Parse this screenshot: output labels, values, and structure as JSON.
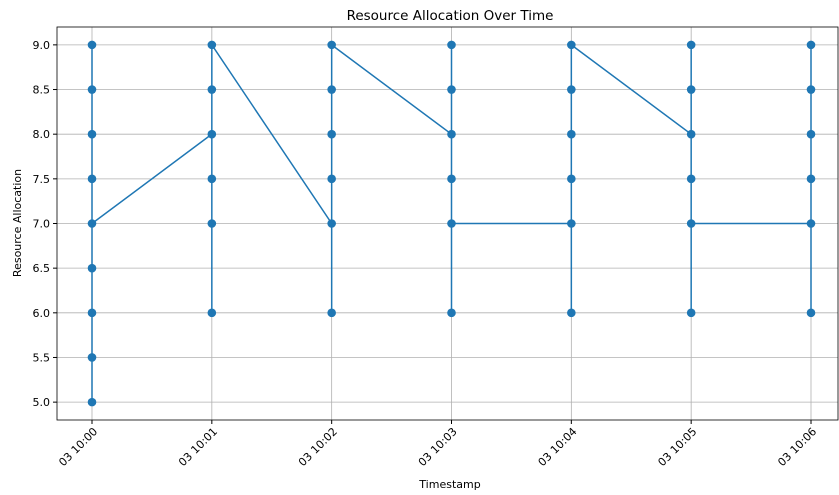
{
  "chart_data": {
    "type": "line",
    "title": "Resource Allocation Over Time",
    "xlabel": "Timestamp",
    "ylabel": "Resource Allocation",
    "xticks": [
      "03 10:00",
      "03 10:01",
      "03 10:02",
      "03 10:03",
      "03 10:04",
      "03 10:05",
      "03 10:06"
    ],
    "x": [
      "03 10:00",
      "03 10:00",
      "03 10:00",
      "03 10:00",
      "03 10:00",
      "03 10:00",
      "03 10:00",
      "03 10:00",
      "03 10:00",
      "03 10:01",
      "03 10:01",
      "03 10:01",
      "03 10:01",
      "03 10:01",
      "03 10:01",
      "03 10:02",
      "03 10:02",
      "03 10:02",
      "03 10:02",
      "03 10:02",
      "03 10:02",
      "03 10:03",
      "03 10:03",
      "03 10:03",
      "03 10:03",
      "03 10:03",
      "03 10:03",
      "03 10:04",
      "03 10:04",
      "03 10:04",
      "03 10:04",
      "03 10:04",
      "03 10:04",
      "03 10:05",
      "03 10:05",
      "03 10:05",
      "03 10:05",
      "03 10:05",
      "03 10:05",
      "03 10:06",
      "03 10:06",
      "03 10:06",
      "03 10:06",
      "03 10:06",
      "03 10:06"
    ],
    "series": [
      {
        "color": "#1f77b4",
        "values": [
          9,
          5,
          5.5,
          6,
          6.5,
          8.5,
          8,
          7.5,
          7,
          8,
          6,
          7,
          7.5,
          8.5,
          9,
          7,
          6,
          7.5,
          8,
          8.5,
          9,
          8,
          9,
          8.5,
          7.5,
          6,
          7,
          7,
          6,
          7.5,
          8,
          8.5,
          9,
          8,
          9,
          8.5,
          7.5,
          6,
          7,
          7,
          6,
          7.5,
          8,
          8.5,
          9
        ]
      }
    ],
    "ylim": [
      4.8,
      9.2
    ],
    "yticks": [
      {
        "value": 5,
        "label": "5.0"
      },
      {
        "value": 5.5,
        "label": "5.5"
      },
      {
        "value": 6,
        "label": "6.0"
      },
      {
        "value": 6.5,
        "label": "6.5"
      },
      {
        "value": 7,
        "label": "7.0"
      },
      {
        "value": 7.5,
        "label": "7.5"
      },
      {
        "value": 8,
        "label": "8.0"
      },
      {
        "value": 8.5,
        "label": "8.5"
      },
      {
        "value": 9,
        "label": "9.0"
      }
    ],
    "grid": true
  }
}
